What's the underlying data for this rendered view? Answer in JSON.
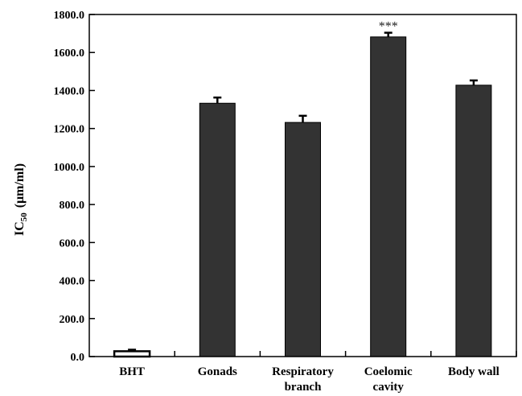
{
  "chart_data": {
    "type": "bar",
    "categories": [
      [
        "BHT"
      ],
      [
        "Gonads"
      ],
      [
        "Respiratory",
        "branch"
      ],
      [
        "Coelomic",
        "cavity"
      ],
      [
        "Body wall"
      ]
    ],
    "values": [
      28,
      1333,
      1232,
      1682,
      1428
    ],
    "errors": [
      8,
      30,
      35,
      22,
      25
    ],
    "bar_fill": [
      "#ffffff",
      "#333333",
      "#333333",
      "#333333",
      "#333333"
    ],
    "bar_stroke": "#000000",
    "annotations": [
      {
        "category_index": 3,
        "text": "***"
      }
    ],
    "ylabel_main": "IC",
    "ylabel_sub": "50",
    "ylabel_unit": "(μm/ml)",
    "ylim": [
      0,
      1800
    ],
    "yticks": [
      0,
      200,
      400,
      600,
      800,
      1000,
      1200,
      1400,
      1600,
      1800
    ],
    "ytick_labels": [
      "0.0",
      "200.0",
      "400.0",
      "600.0",
      "800.0",
      "1000.0",
      "1200.0",
      "1400.0",
      "1600.0",
      "1800.0"
    ],
    "grid": false,
    "legend": "none"
  }
}
